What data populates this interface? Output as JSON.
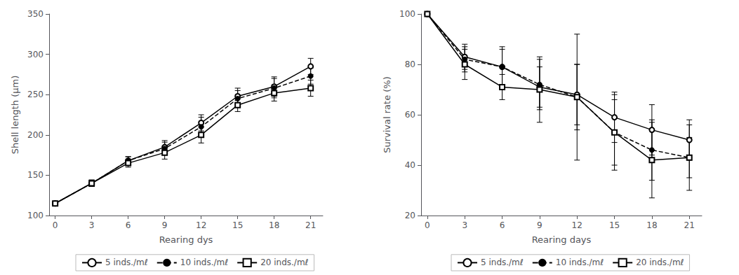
{
  "chart_data": [
    {
      "type": "line",
      "x": [
        0,
        3,
        6,
        9,
        12,
        15,
        18,
        21
      ],
      "xlabel": "Rearing dys",
      "ylabel": "Shell length (μm)",
      "xlim": [
        -0.5,
        22
      ],
      "xticks": [
        0,
        3,
        6,
        9,
        12,
        15,
        18,
        21
      ],
      "ylim": [
        100,
        350
      ],
      "yticks": [
        100,
        150,
        200,
        250,
        300,
        350
      ],
      "grid": false,
      "legend": "bottom",
      "series": [
        {
          "name": "5 inds./mℓ",
          "color": "#000000",
          "marker": "circle-open",
          "line_style": "solid",
          "values": [
            115,
            140,
            168,
            185,
            215,
            248,
            260,
            285
          ],
          "errors": [
            2,
            4,
            5,
            8,
            10,
            10,
            12,
            10
          ]
        },
        {
          "name": "10 inds./mℓ",
          "color": "#000000",
          "marker": "circle",
          "line_style": "dashed",
          "values": [
            115,
            140,
            168,
            183,
            210,
            245,
            258,
            273
          ],
          "errors": [
            2,
            4,
            5,
            8,
            12,
            10,
            12,
            10
          ]
        },
        {
          "name": "20 inds./mℓ",
          "color": "#000000",
          "marker": "square-open",
          "line_style": "solid",
          "values": [
            115,
            140,
            165,
            178,
            200,
            237,
            252,
            258
          ],
          "errors": [
            2,
            4,
            5,
            8,
            10,
            8,
            10,
            10
          ]
        }
      ]
    },
    {
      "type": "line",
      "x": [
        0,
        3,
        6,
        9,
        12,
        15,
        18,
        21
      ],
      "xlabel": "Rearing days",
      "ylabel": "Survival rate (%)",
      "xlim": [
        -0.5,
        22
      ],
      "xticks": [
        0,
        3,
        6,
        9,
        12,
        15,
        18,
        21
      ],
      "ylim": [
        20,
        100
      ],
      "yticks": [
        20,
        40,
        60,
        80,
        100
      ],
      "grid": false,
      "legend": "bottom",
      "series": [
        {
          "name": "5 inds./mℓ",
          "color": "#000000",
          "marker": "circle-open",
          "line_style": "solid",
          "values": [
            100,
            83,
            79,
            71,
            68,
            59,
            54,
            50
          ],
          "errors": [
            0,
            5,
            7,
            8,
            12,
            10,
            10,
            8
          ]
        },
        {
          "name": "10 inds./mℓ",
          "color": "#000000",
          "marker": "circle",
          "line_style": "dashed",
          "values": [
            100,
            82,
            79,
            72,
            67,
            53,
            46,
            43
          ],
          "errors": [
            0,
            5,
            8,
            10,
            25,
            15,
            12,
            8
          ]
        },
        {
          "name": "20 inds./mℓ",
          "color": "#000000",
          "marker": "square-open",
          "line_style": "solid",
          "values": [
            100,
            80,
            71,
            70,
            67,
            53,
            42,
            43
          ],
          "errors": [
            0,
            6,
            5,
            13,
            13,
            13,
            15,
            13
          ]
        }
      ]
    }
  ]
}
